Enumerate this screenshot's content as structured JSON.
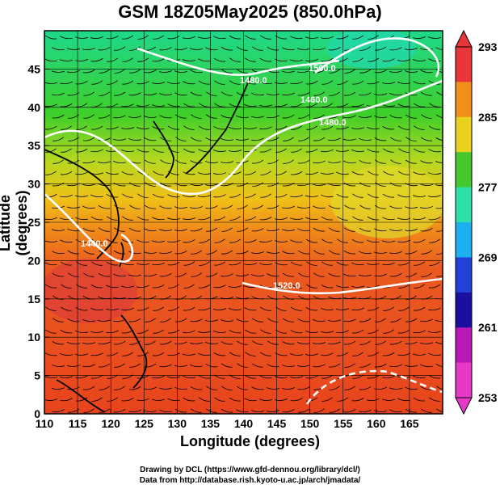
{
  "title": "GSM 18Z05May2025 (850.0hPa)",
  "axes": {
    "xlabel": "Longitude (degrees)",
    "ylabel": "Latitude  (degrees)",
    "x_ticks": [
      "110",
      "115",
      "120",
      "125",
      "130",
      "135",
      "140",
      "145",
      "150",
      "155",
      "160",
      "165"
    ],
    "y_ticks": [
      "0",
      "5",
      "10",
      "15",
      "20",
      "25",
      "30",
      "35",
      "40",
      "45"
    ]
  },
  "colorbar": {
    "labels": [
      "293",
      "285",
      "277",
      "269",
      "261",
      "253"
    ],
    "colors": [
      "#e8363a",
      "#f08f1a",
      "#e8d21e",
      "#45c82e",
      "#2ce0a8",
      "#1cb0f0",
      "#2440d8",
      "#1a10a0",
      "#b818b8",
      "#e838c8"
    ]
  },
  "contour_labels": [
    "1500.0",
    "1480.0",
    "1460.0",
    "1440.0",
    "1520.0"
  ],
  "credits": {
    "line1": "Drawing by DCL (https://www.gfd-dennou.org/library/dcl/)",
    "line2": "Data from http://database.rish.kyoto-u.ac.jp/arch/jmadata/"
  }
}
